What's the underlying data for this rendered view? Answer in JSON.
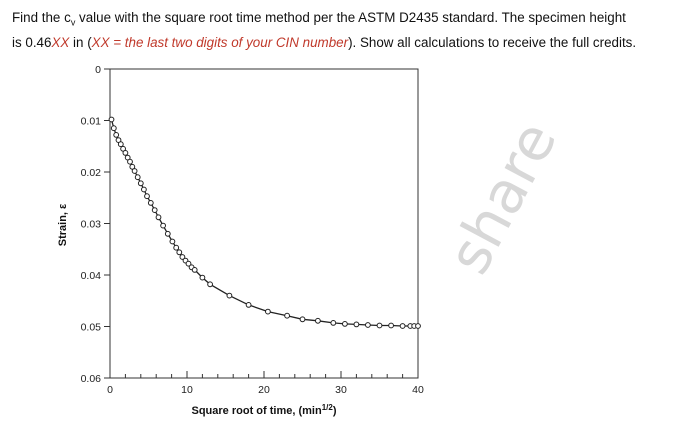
{
  "question": {
    "line1_a": "Find the c",
    "line1_sub": "v",
    "line1_b": " value with the square root time method per the ASTM D2435 standard. The specimen height",
    "line2_a": "is 0.46",
    "line2_xx": "XX",
    "line2_b": " in (",
    "line2_red": "XX = the last two digits of your CIN number",
    "line2_c": "). Show all calculations to receive the full credits."
  },
  "watermark": {
    "text": "share",
    "color": "#d8d8d8"
  },
  "chart_data": {
    "type": "scatter",
    "title": "",
    "xlabel": "Square root of time, (min",
    "xlabel_sup": "1/2",
    "xlabel_end": ")",
    "ylabel": "Strain, ε",
    "xlim": [
      0,
      40
    ],
    "ylim": [
      0,
      0.06
    ],
    "y_inverted": true,
    "grid": false,
    "x_ticks": [
      0,
      10,
      20,
      30,
      40
    ],
    "x_tick_labels": [
      "0",
      "10",
      "20",
      "30",
      "40"
    ],
    "y_ticks": [
      0,
      0.01,
      0.02,
      0.03,
      0.04,
      0.05,
      0.06
    ],
    "y_tick_labels": [
      "0",
      "0.01",
      "0.02",
      "0.03",
      "0.04",
      "0.05",
      "0.06"
    ],
    "series": [
      {
        "marker": "open-circle",
        "x": [
          0.2,
          0.5,
          0.8,
          1.1,
          1.4,
          1.7,
          2.0,
          2.3,
          2.6,
          2.9,
          3.2,
          3.6,
          4.0,
          4.4,
          4.8,
          5.3,
          5.8,
          6.3,
          6.9,
          7.5,
          8.1,
          8.6,
          9.0,
          9.4,
          9.8,
          10.2,
          10.6,
          11.0,
          12.0,
          13.0,
          15.5,
          18.0,
          20.5,
          23.0,
          25.0,
          27.0,
          29.0,
          30.5,
          32.0,
          33.5,
          35.0,
          36.5,
          38.0,
          39.0,
          39.5,
          40.0
        ],
        "y": [
          0.0098,
          0.0115,
          0.0128,
          0.0138,
          0.0146,
          0.0155,
          0.0163,
          0.0172,
          0.018,
          0.019,
          0.0198,
          0.021,
          0.0222,
          0.0234,
          0.0247,
          0.026,
          0.0274,
          0.0288,
          0.0304,
          0.032,
          0.0335,
          0.0347,
          0.0356,
          0.0365,
          0.0372,
          0.0378,
          0.0385,
          0.039,
          0.0405,
          0.0418,
          0.044,
          0.0458,
          0.0471,
          0.0479,
          0.0486,
          0.0489,
          0.0493,
          0.0495,
          0.0496,
          0.0497,
          0.0498,
          0.0498,
          0.0499,
          0.0499,
          0.0499,
          0.0499
        ]
      }
    ]
  }
}
